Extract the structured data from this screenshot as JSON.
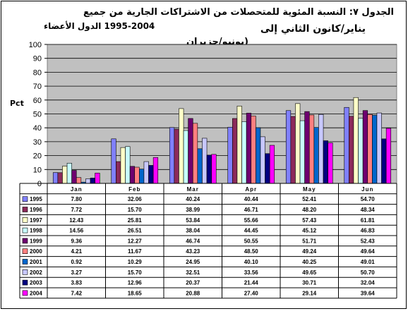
{
  "title": {
    "line1": "الجدول ٧: النسبة المئوية للمتحصلات من الاشتراكات الجارية من جميع",
    "line2": "يناير/كانون الثاني إلى",
    "line3": "(يونيو/حزيران",
    "subtitle": "1995-2004 الدول الأعضاء"
  },
  "colors": [
    "#8080ff",
    "#8c2a5a",
    "#ffffc8",
    "#c8ffff",
    "#6e0070",
    "#ff8080",
    "#0066cc",
    "#c8c8ff",
    "#000080",
    "#ff00ff"
  ],
  "chart_data": {
    "type": "bar",
    "ylabel": "Pct",
    "ylim": [
      0,
      100
    ],
    "yticks": [
      0,
      10,
      20,
      30,
      40,
      50,
      60,
      70,
      80,
      90,
      100
    ],
    "grid": true,
    "categories": [
      "Jan",
      "Feb",
      "Mar",
      "Apr",
      "May",
      "Jun"
    ],
    "series": [
      {
        "name": "1995",
        "values": [
          7.8,
          32.06,
          40.24,
          40.44,
          52.41,
          54.7
        ]
      },
      {
        "name": "1996",
        "values": [
          7.72,
          15.7,
          38.99,
          46.71,
          48.2,
          48.34
        ]
      },
      {
        "name": "1997",
        "values": [
          12.43,
          25.81,
          53.84,
          55.66,
          57.43,
          61.81
        ]
      },
      {
        "name": "1998",
        "values": [
          14.56,
          26.51,
          38.04,
          44.45,
          45.12,
          46.83
        ]
      },
      {
        "name": "1999",
        "values": [
          9.36,
          12.27,
          46.74,
          50.55,
          51.71,
          52.43
        ]
      },
      {
        "name": "2000",
        "values": [
          4.21,
          11.67,
          43.23,
          48.5,
          49.24,
          49.64
        ]
      },
      {
        "name": "2001",
        "values": [
          0.92,
          10.29,
          24.95,
          40.1,
          40.25,
          49.01
        ]
      },
      {
        "name": "2002",
        "values": [
          3.27,
          15.7,
          32.51,
          33.56,
          49.65,
          50.7
        ]
      },
      {
        "name": "2003",
        "values": [
          3.83,
          12.96,
          20.37,
          21.44,
          30.71,
          32.04
        ]
      },
      {
        "name": "2004",
        "values": [
          7.42,
          18.65,
          20.88,
          27.4,
          29.14,
          39.64
        ]
      }
    ],
    "table": {
      "rows": [
        [
          "7.80",
          "32.06",
          "40.24",
          "40.44",
          "52.41",
          "54.70"
        ],
        [
          "7.72",
          "15.70",
          "38.99",
          "46.71",
          "48.20",
          "48.34"
        ],
        [
          "12.43",
          "25.81",
          "53.84",
          "55.66",
          "57.43",
          "61.81"
        ],
        [
          "14.56",
          "26.51",
          "38.04",
          "44.45",
          "45.12",
          "46.83"
        ],
        [
          "9.36",
          "12.27",
          "46.74",
          "50.55",
          "51.71",
          "52.43"
        ],
        [
          "4.21",
          "11.67",
          "43.23",
          "48.50",
          "49.24",
          "49.64"
        ],
        [
          "0.92",
          "10.29",
          "24.95",
          "40.10",
          "40.25",
          "49.01"
        ],
        [
          "3.27",
          "15.70",
          "32.51",
          "33.56",
          "49.65",
          "50.70"
        ],
        [
          "3.83",
          "12.96",
          "20.37",
          "21.44",
          "30.71",
          "32.04"
        ],
        [
          "7.42",
          "18.65",
          "20.88",
          "27.40",
          "29.14",
          "39.64"
        ]
      ]
    }
  }
}
